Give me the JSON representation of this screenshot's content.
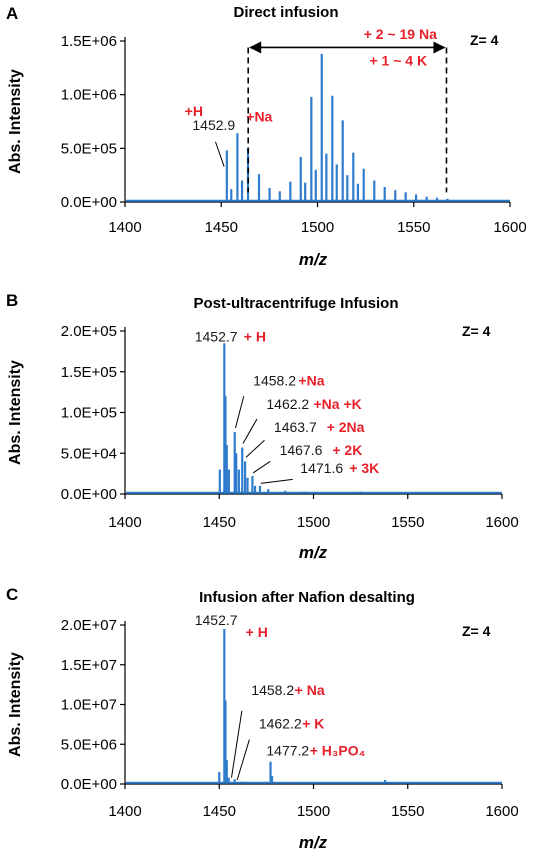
{
  "chart_data": [
    {
      "type": "line",
      "panel_letter": "A",
      "title": "Direct infusion",
      "xlabel": "m/z",
      "ylabel": "Abs. Intensity",
      "xlim": [
        1400,
        1600
      ],
      "ylim": [
        0,
        1500000
      ],
      "x_ticks": [
        "1400",
        "1450",
        "1500",
        "1550",
        "1600"
      ],
      "y_ticks": [
        "0.0E+00",
        "5.0E+05",
        "1.0E+06",
        "1.5E+06"
      ],
      "y_tick_values": [
        0,
        500000,
        1000000,
        1500000
      ],
      "charge_label": "Z= 4",
      "series_color": "#2f7bcc",
      "peaks": [
        {
          "x": 1452.9,
          "y": 480000
        },
        {
          "x": 1455.2,
          "y": 120000
        },
        {
          "x": 1458.4,
          "y": 640000
        },
        {
          "x": 1460.8,
          "y": 200000
        },
        {
          "x": 1463.9,
          "y": 500000
        },
        {
          "x": 1469.6,
          "y": 260000
        },
        {
          "x": 1475.1,
          "y": 130000
        },
        {
          "x": 1480.4,
          "y": 100000
        },
        {
          "x": 1485.9,
          "y": 190000
        },
        {
          "x": 1491.3,
          "y": 420000
        },
        {
          "x": 1493.6,
          "y": 180000
        },
        {
          "x": 1496.8,
          "y": 980000
        },
        {
          "x": 1499.1,
          "y": 300000
        },
        {
          "x": 1502.2,
          "y": 1380000
        },
        {
          "x": 1504.6,
          "y": 450000
        },
        {
          "x": 1507.7,
          "y": 990000
        },
        {
          "x": 1510.0,
          "y": 350000
        },
        {
          "x": 1513.1,
          "y": 760000
        },
        {
          "x": 1515.5,
          "y": 250000
        },
        {
          "x": 1518.6,
          "y": 460000
        },
        {
          "x": 1521.0,
          "y": 170000
        },
        {
          "x": 1524.0,
          "y": 310000
        },
        {
          "x": 1529.5,
          "y": 200000
        },
        {
          "x": 1534.9,
          "y": 140000
        },
        {
          "x": 1540.4,
          "y": 110000
        },
        {
          "x": 1545.8,
          "y": 90000
        },
        {
          "x": 1551.2,
          "y": 70000
        },
        {
          "x": 1556.7,
          "y": 50000
        },
        {
          "x": 1562.1,
          "y": 40000
        },
        {
          "x": 1567.5,
          "y": 30000
        }
      ],
      "annotations": [
        {
          "text": "1452.9",
          "color": "black",
          "x": 1435,
          "y": 670000
        },
        {
          "text": "+H",
          "color": "red",
          "x": 1431,
          "y": 800000
        },
        {
          "text": "+Na",
          "color": "red",
          "x": 1463,
          "y": 750000
        },
        {
          "text": "+ 2 ~ 19 Na",
          "color": "red",
          "x": 1524,
          "y": 1520000
        },
        {
          "text": "+ 1 ~ 4 K",
          "color": "red",
          "x": 1527,
          "y": 1270000
        }
      ],
      "leader_lines": [
        {
          "from": [
            1447,
            560000
          ],
          "to": [
            1451.5,
            330000
          ]
        }
      ],
      "bracket": {
        "x_start": 1464,
        "x_end": 1567,
        "y": 1440000,
        "dashed_to": 90000
      }
    },
    {
      "type": "line",
      "panel_letter": "B",
      "title": "Post-ultracentrifuge Infusion",
      "xlabel": "m/z",
      "ylabel": "Abs. Intensity",
      "xlim": [
        1400,
        1600
      ],
      "ylim": [
        0,
        200000
      ],
      "x_ticks": [
        "1400",
        "1450",
        "1500",
        "1550",
        "1600"
      ],
      "y_ticks": [
        "0.0E+00",
        "5.0E+04",
        "1.0E+05",
        "1.5E+05",
        "2.0E+05"
      ],
      "y_tick_values": [
        0,
        50000,
        100000,
        150000,
        200000
      ],
      "charge_label": "Z= 4",
      "series_color": "#2f7bcc",
      "peaks": [
        {
          "x": 1450.3,
          "y": 30000
        },
        {
          "x": 1452.7,
          "y": 185000
        },
        {
          "x": 1453.3,
          "y": 120000
        },
        {
          "x": 1454.0,
          "y": 60000
        },
        {
          "x": 1455.1,
          "y": 30000
        },
        {
          "x": 1458.2,
          "y": 76000
        },
        {
          "x": 1459.0,
          "y": 50000
        },
        {
          "x": 1460.4,
          "y": 30000
        },
        {
          "x": 1462.2,
          "y": 57000
        },
        {
          "x": 1463.7,
          "y": 40000
        },
        {
          "x": 1465.0,
          "y": 20000
        },
        {
          "x": 1467.6,
          "y": 22000
        },
        {
          "x": 1469.0,
          "y": 10000
        },
        {
          "x": 1471.6,
          "y": 10000
        },
        {
          "x": 1476.0,
          "y": 6000
        },
        {
          "x": 1485.0,
          "y": 4000
        },
        {
          "x": 1495.0,
          "y": 3000
        },
        {
          "x": 1525.0,
          "y": 3000
        },
        {
          "x": 1540.0,
          "y": 2500
        }
      ],
      "annotations": [
        {
          "text": "1452.7",
          "color": "black",
          "x": 1437,
          "y": 187000
        },
        {
          "text": "+ H",
          "color": "red",
          "x": 1463,
          "y": 187000
        },
        {
          "text": "1458.2",
          "color": "black",
          "x": 1468,
          "y": 133000
        },
        {
          "text": "+Na",
          "color": "red",
          "x": 1492,
          "y": 133000
        },
        {
          "text": "1462.2",
          "color": "black",
          "x": 1475,
          "y": 104000
        },
        {
          "text": "+Na +K",
          "color": "red",
          "x": 1500,
          "y": 104000
        },
        {
          "text": "1463.7",
          "color": "black",
          "x": 1479,
          "y": 76000
        },
        {
          "text": "+ 2Na",
          "color": "red",
          "x": 1507,
          "y": 76000
        },
        {
          "text": "1467.6",
          "color": "black",
          "x": 1482,
          "y": 48000
        },
        {
          "text": "+ 2K",
          "color": "red",
          "x": 1510,
          "y": 48000
        },
        {
          "text": "1471.6",
          "color": "black",
          "x": 1493,
          "y": 26000
        },
        {
          "text": "+ 3K",
          "color": "red",
          "x": 1519,
          "y": 26000
        }
      ],
      "leader_lines": [
        {
          "from": [
            1463,
            120000
          ],
          "to": [
            1458.6,
            81000
          ]
        },
        {
          "from": [
            1470,
            92000
          ],
          "to": [
            1462.6,
            62000
          ]
        },
        {
          "from": [
            1474,
            66000
          ],
          "to": [
            1464.2,
            45000
          ]
        },
        {
          "from": [
            1477,
            40000
          ],
          "to": [
            1468.0,
            26000
          ]
        },
        {
          "from": [
            1489,
            18000
          ],
          "to": [
            1472.0,
            13000
          ]
        }
      ]
    },
    {
      "type": "line",
      "panel_letter": "C",
      "title": "Infusion after Nafion desalting",
      "xlabel": "m/z",
      "ylabel": "Abs. Intensity",
      "xlim": [
        1400,
        1600
      ],
      "ylim": [
        0,
        20000000
      ],
      "x_ticks": [
        "1400",
        "1450",
        "1500",
        "1550",
        "1600"
      ],
      "y_ticks": [
        "0.0E+00",
        "5.0E+06",
        "1.0E+07",
        "1.5E+07",
        "2.0E+07"
      ],
      "y_tick_values": [
        0,
        5000000,
        10000000,
        15000000,
        20000000
      ],
      "charge_label": "Z= 4",
      "series_color": "#2f7bcc",
      "peaks": [
        {
          "x": 1450.0,
          "y": 1500000
        },
        {
          "x": 1452.7,
          "y": 19500000
        },
        {
          "x": 1453.3,
          "y": 10500000
        },
        {
          "x": 1454.0,
          "y": 3000000
        },
        {
          "x": 1455.0,
          "y": 800000
        },
        {
          "x": 1458.2,
          "y": 600000
        },
        {
          "x": 1462.2,
          "y": 300000
        },
        {
          "x": 1477.2,
          "y": 2800000
        },
        {
          "x": 1478.0,
          "y": 1000000
        },
        {
          "x": 1490.0,
          "y": 250000
        },
        {
          "x": 1538.0,
          "y": 500000
        }
      ],
      "annotations": [
        {
          "text": "1452.7",
          "color": "black",
          "x": 1437,
          "y": 20000000
        },
        {
          "text": "+ H",
          "color": "red",
          "x": 1464,
          "y": 18500000
        },
        {
          "text": "1458.2",
          "color": "black",
          "x": 1467,
          "y": 11200000
        },
        {
          "text": "+ Na",
          "color": "red",
          "x": 1490,
          "y": 11200000
        },
        {
          "text": "1462.2",
          "color": "black",
          "x": 1471,
          "y": 7000000
        },
        {
          "text": "+ K",
          "color": "red",
          "x": 1494,
          "y": 7000000
        },
        {
          "text": "1477.2",
          "color": "black",
          "x": 1475,
          "y": 3600000
        },
        {
          "text": "+ H₃PO₄",
          "color": "red",
          "x": 1498,
          "y": 3600000
        }
      ],
      "leader_lines": [
        {
          "from": [
            1462,
            9200000
          ],
          "to": [
            1456.5,
            800000
          ]
        },
        {
          "from": [
            1466,
            5600000
          ],
          "to": [
            1459.5,
            500000
          ]
        }
      ]
    }
  ]
}
